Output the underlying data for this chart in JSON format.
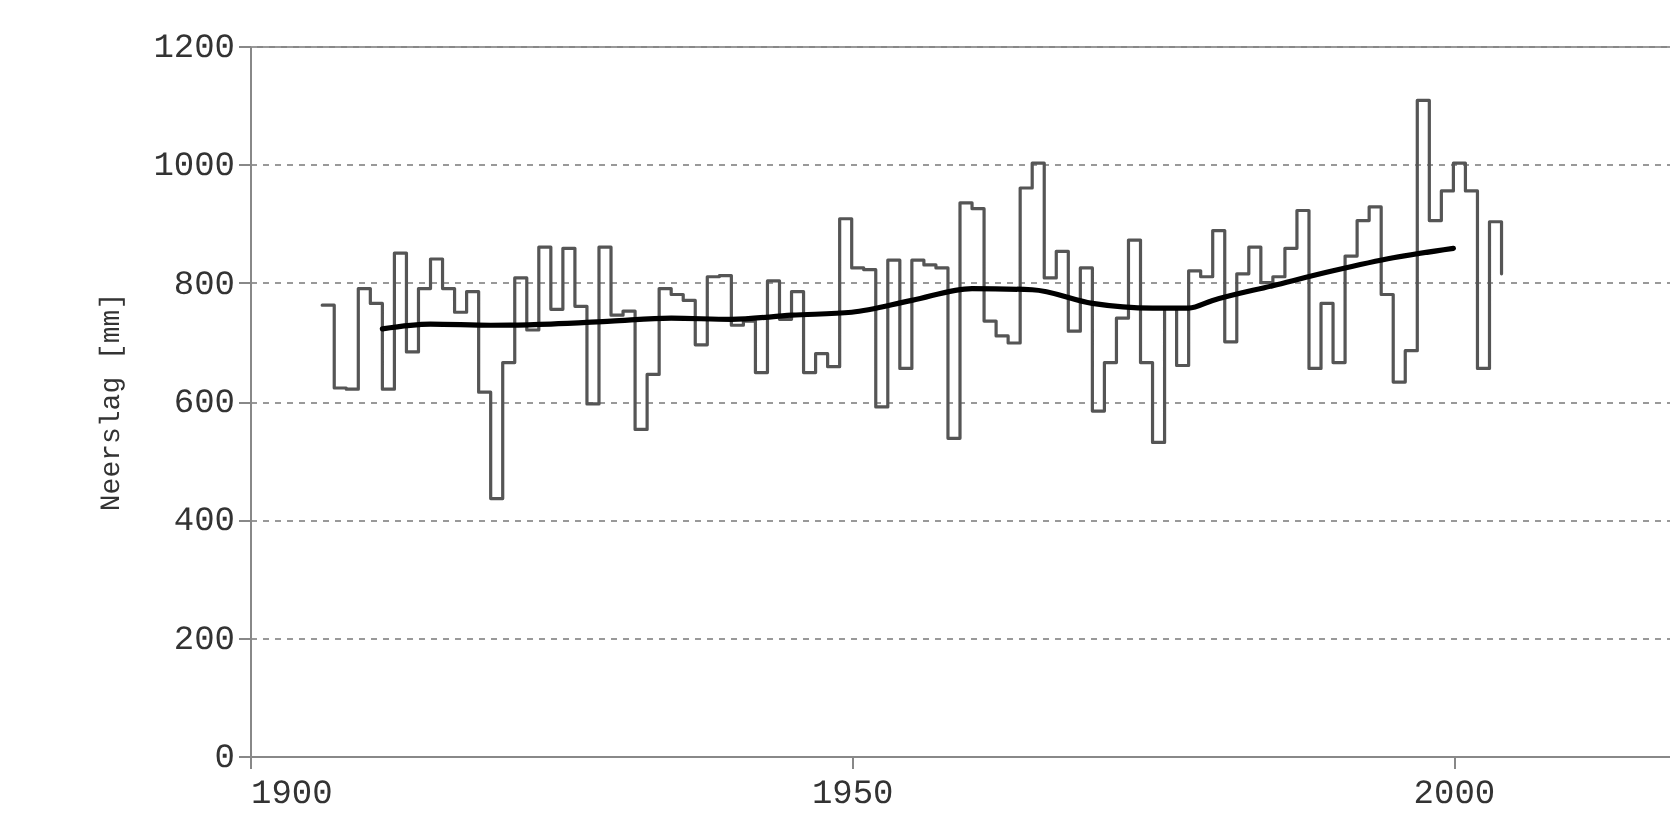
{
  "chart_data": {
    "type": "step",
    "ylabel": "Neerslag [mm]",
    "xlim": [
      1900,
      2018
    ],
    "xticks": [
      1900,
      1950,
      2000
    ],
    "ylim": [
      0,
      1200
    ],
    "yticks": [
      0,
      200,
      400,
      600,
      800,
      1000,
      1200
    ],
    "grid": "y",
    "series": [
      {
        "type": "step",
        "color": "#555555",
        "x": [
          1906,
          1907,
          1908,
          1909,
          1910,
          1911,
          1912,
          1913,
          1914,
          1915,
          1916,
          1917,
          1918,
          1919,
          1920,
          1921,
          1922,
          1923,
          1924,
          1925,
          1926,
          1927,
          1928,
          1929,
          1930,
          1931,
          1932,
          1933,
          1934,
          1935,
          1936,
          1937,
          1938,
          1939,
          1940,
          1941,
          1942,
          1943,
          1944,
          1945,
          1946,
          1947,
          1948,
          1949,
          1950,
          1951,
          1952,
          1953,
          1954,
          1955,
          1956,
          1957,
          1958,
          1959,
          1960,
          1961,
          1962,
          1963,
          1964,
          1965,
          1966,
          1967,
          1968,
          1969,
          1970,
          1971,
          1972,
          1973,
          1974,
          1975,
          1976,
          1977,
          1978,
          1979,
          1980,
          1981,
          1982,
          1983,
          1984,
          1985,
          1986,
          1987,
          1988,
          1989,
          1990,
          1991,
          1992,
          1993,
          1994,
          1995,
          1996,
          1997,
          1998,
          1999,
          2000,
          2001,
          2002,
          2003,
          2004
        ],
        "values": [
          762,
          622,
          620,
          790,
          765,
          620,
          850,
          683,
          790,
          840,
          790,
          750,
          785,
          615,
          435,
          665,
          808,
          720,
          860,
          755,
          858,
          760,
          595,
          860,
          745,
          752,
          552,
          645,
          790,
          780,
          770,
          695,
          810,
          812,
          728,
          735,
          648,
          803,
          738,
          785,
          648,
          680,
          658,
          908,
          825,
          822,
          590,
          838,
          655,
          838,
          830,
          825,
          537,
          935,
          925,
          735,
          710,
          698,
          960,
          1002,
          808,
          853,
          718,
          825,
          583,
          665,
          740,
          872,
          665,
          530,
          757,
          660,
          820,
          810,
          888,
          700,
          815,
          860,
          800,
          810,
          858,
          922,
          655,
          765,
          665,
          845,
          905,
          928,
          780,
          632,
          685,
          1108,
          905,
          955,
          1002,
          955,
          655,
          903,
          815
        ]
      },
      {
        "type": "line",
        "color": "#000000",
        "x": [
          1911,
          1915,
          1920,
          1925,
          1930,
          1935,
          1940,
          1945,
          1950,
          1955,
          1960,
          1965,
          1970,
          1975,
          1978,
          1980,
          1985,
          1990,
          1995,
          2000
        ],
        "values": [
          722,
          730,
          728,
          730,
          735,
          740,
          738,
          745,
          750,
          770,
          790,
          788,
          765,
          757,
          757,
          770,
          795,
          820,
          842,
          858
        ]
      }
    ]
  }
}
